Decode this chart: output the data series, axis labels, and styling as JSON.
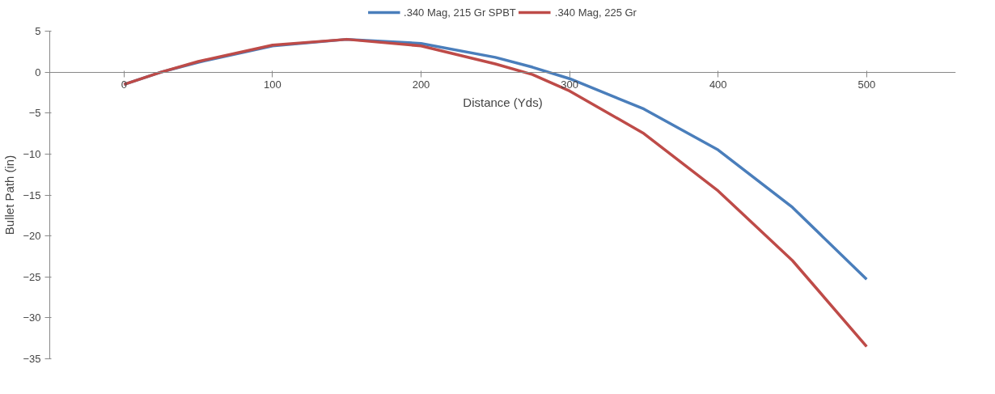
{
  "chart_data": {
    "type": "line",
    "xlabel": "Distance (Yds)",
    "ylabel": "Bullet Path (in)",
    "x": [
      0,
      25,
      50,
      100,
      150,
      200,
      250,
      275,
      300,
      350,
      400,
      450,
      500
    ],
    "series": [
      {
        "name": ".340 Mag, 215 Gr SPBT",
        "color": "#4a7ebb",
        "values": [
          -1.5,
          0,
          1.2,
          3.2,
          4,
          3.5,
          1.8,
          0.6,
          -0.8,
          -4.5,
          -9.5,
          -16.5,
          -25.3
        ]
      },
      {
        "name": ".340 Mag, 225 Gr",
        "color": "#be4b48",
        "values": [
          -1.5,
          0,
          1.3,
          3.3,
          4,
          3.2,
          1,
          -0.3,
          -2.3,
          -7.5,
          -14.5,
          -23,
          -33.5
        ]
      }
    ],
    "xlim": [
      -50,
      560
    ],
    "ylim": [
      -35,
      5
    ],
    "xticks": [
      0,
      100,
      200,
      300,
      400,
      500
    ],
    "yticks": [
      -35,
      -30,
      -25,
      -20,
      -15,
      -10,
      -5,
      0,
      5
    ],
    "grid": false,
    "legend": "top",
    "marker": "none",
    "line_style": "solid"
  }
}
